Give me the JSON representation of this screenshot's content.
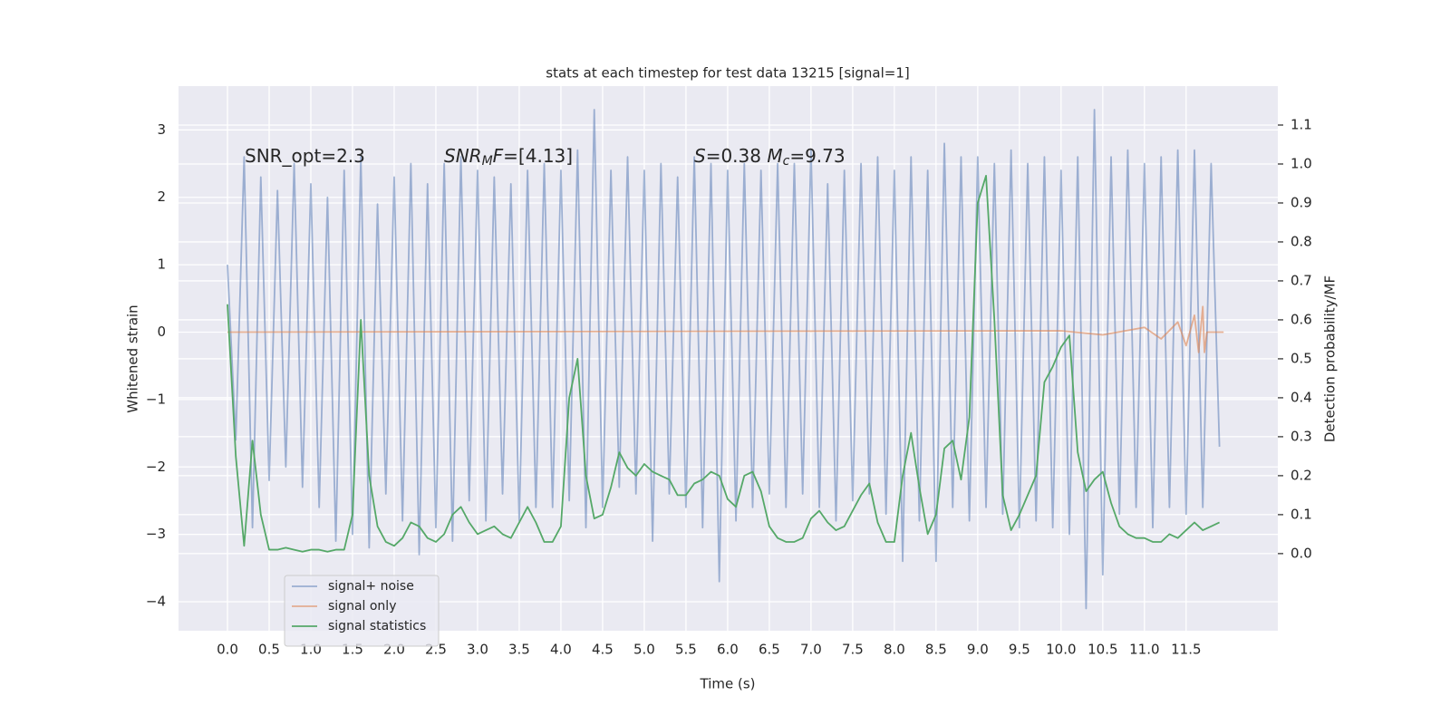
{
  "chart_data": {
    "type": "line",
    "title": "stats at each timestep for test data 13215 [signal=1]",
    "x_label": "Time (s)",
    "y_label": "Whitened strain",
    "y2_label": "Detection probability/MF",
    "annotations": [
      [
        {
          "text": "SNR_opt=2.3"
        }
      ],
      [
        {
          "text": "SNR",
          "italic": true
        },
        {
          "text": "M",
          "italic": true,
          "sub": true
        },
        {
          "text": "F",
          "italic": true
        },
        {
          "text": "=[4.13]"
        }
      ],
      [
        {
          "text": "S",
          "italic": true
        },
        {
          "text": "=0.38   "
        },
        {
          "text": "M",
          "italic": true
        },
        {
          "text": "c",
          "italic": true,
          "sub": true
        },
        {
          "text": "=9.73"
        }
      ]
    ],
    "xlim": [
      -0.587,
      12.6
    ],
    "ylim": [
      -4.43,
      3.65
    ],
    "y2lim": [
      -0.198,
      1.2
    ],
    "xticks": [
      {
        "value": 0,
        "label": "0.0"
      },
      {
        "value": 0.5,
        "label": "0.5"
      },
      {
        "value": 1,
        "label": "1.0"
      },
      {
        "value": 1.5,
        "label": "1.5"
      },
      {
        "value": 2,
        "label": "2.0"
      },
      {
        "value": 2.5,
        "label": "2.5"
      },
      {
        "value": 3,
        "label": "3.0"
      },
      {
        "value": 3.5,
        "label": "3.5"
      },
      {
        "value": 4,
        "label": "4.0"
      },
      {
        "value": 4.5,
        "label": "4.5"
      },
      {
        "value": 5,
        "label": "5.0"
      },
      {
        "value": 5.5,
        "label": "5.5"
      },
      {
        "value": 6,
        "label": "6.0"
      },
      {
        "value": 6.5,
        "label": "6.5"
      },
      {
        "value": 7,
        "label": "7.0"
      },
      {
        "value": 7.5,
        "label": "7.5"
      },
      {
        "value": 8,
        "label": "8.0"
      },
      {
        "value": 8.5,
        "label": "8.5"
      },
      {
        "value": 9,
        "label": "9.0"
      },
      {
        "value": 9.5,
        "label": "9.5"
      },
      {
        "value": 10,
        "label": "10.0"
      },
      {
        "value": 10.5,
        "label": "10.5"
      },
      {
        "value": 11,
        "label": "11.0"
      },
      {
        "value": 11.5,
        "label": "11.5"
      }
    ],
    "yticks": [
      {
        "value": -4,
        "label": "−4"
      },
      {
        "value": -3,
        "label": "−3"
      },
      {
        "value": -2,
        "label": "−2"
      },
      {
        "value": -1,
        "label": "−1"
      },
      0,
      1,
      2,
      3
    ],
    "y2ticks": [
      {
        "value": 0,
        "label": "0.0"
      },
      {
        "value": 0.1,
        "label": "0.1"
      },
      {
        "value": 0.2,
        "label": "0.2"
      },
      {
        "value": 0.3,
        "label": "0.3"
      },
      {
        "value": 0.4,
        "label": "0.4"
      },
      {
        "value": 0.5,
        "label": "0.5"
      },
      {
        "value": 0.6,
        "label": "0.6"
      },
      {
        "value": 0.7,
        "label": "0.7"
      },
      {
        "value": 0.8,
        "label": "0.8"
      },
      {
        "value": 0.9,
        "label": "0.9"
      },
      {
        "value": 1,
        "label": "1.0"
      },
      {
        "value": 1.1,
        "label": "1.1"
      }
    ],
    "grid": true,
    "legend": "lower left",
    "series": [
      {
        "name": "signal+ noise",
        "color": "#4c72b0",
        "alpha": 0.5,
        "axis": "y",
        "x": [
          0,
          0.1,
          0.2,
          0.3,
          0.4,
          0.5,
          0.6,
          0.7,
          0.8,
          0.9,
          1,
          1.1,
          1.2,
          1.3,
          1.4,
          1.5,
          1.6,
          1.7,
          1.8,
          1.9,
          2,
          2.1,
          2.2,
          2.3,
          2.4,
          2.5,
          2.6,
          2.7,
          2.8,
          2.9,
          3,
          3.1,
          3.2,
          3.3,
          3.4,
          3.5,
          3.6,
          3.7,
          3.8,
          3.9,
          4,
          4.1,
          4.2,
          4.3,
          4.4,
          4.5,
          4.6,
          4.7,
          4.8,
          4.9,
          5,
          5.1,
          5.2,
          5.3,
          5.4,
          5.5,
          5.6,
          5.7,
          5.8,
          5.9,
          6,
          6.1,
          6.2,
          6.3,
          6.4,
          6.5,
          6.6,
          6.7,
          6.8,
          6.9,
          7,
          7.1,
          7.2,
          7.3,
          7.4,
          7.5,
          7.6,
          7.7,
          7.8,
          7.9,
          8,
          8.1,
          8.2,
          8.3,
          8.4,
          8.5,
          8.6,
          8.7,
          8.8,
          8.9,
          9,
          9.1,
          9.2,
          9.3,
          9.4,
          9.5,
          9.6,
          9.7,
          9.8,
          9.9,
          10,
          10.1,
          10.2,
          10.3,
          10.4,
          10.5,
          10.6,
          10.7,
          10.8,
          10.9,
          11,
          11.1,
          11.2,
          11.3,
          11.4,
          11.5,
          11.6,
          11.7,
          11.8,
          11.9
        ],
        "values": [
          1.0,
          -1.6,
          2.6,
          -2.9,
          2.3,
          -2.2,
          2.1,
          -2.0,
          2.5,
          -2.3,
          2.2,
          -2.6,
          2.0,
          -3.1,
          2.4,
          -3.0,
          2.6,
          -3.2,
          1.9,
          -2.4,
          2.3,
          -2.8,
          2.5,
          -3.3,
          2.2,
          -2.9,
          2.5,
          -3.1,
          2.6,
          -2.5,
          2.4,
          -2.8,
          2.3,
          -2.4,
          2.2,
          -2.8,
          2.4,
          -2.6,
          2.5,
          -2.6,
          2.4,
          -2.5,
          2.7,
          -2.9,
          3.3,
          -2.6,
          2.4,
          -2.3,
          2.6,
          -2.4,
          2.4,
          -3.1,
          2.5,
          -2.4,
          2.3,
          -2.6,
          2.6,
          -2.9,
          2.5,
          -3.7,
          2.4,
          -2.8,
          2.5,
          -2.6,
          2.4,
          -2.4,
          2.5,
          -2.6,
          2.5,
          -2.4,
          2.7,
          -2.6,
          2.2,
          -2.8,
          2.4,
          -2.5,
          2.5,
          -2.4,
          2.6,
          -2.7,
          2.4,
          -3.4,
          2.6,
          -2.8,
          2.4,
          -3.4,
          2.8,
          -2.6,
          2.6,
          -2.8,
          2.6,
          -2.6,
          2.5,
          -2.7,
          2.7,
          -2.9,
          2.5,
          -2.8,
          2.6,
          -2.9,
          2.4,
          -3.0,
          2.6,
          -4.1,
          3.3,
          -3.6,
          2.6,
          -2.7,
          2.7,
          -2.6,
          2.5,
          -2.9,
          2.6,
          -2.6,
          2.7,
          -2.7,
          2.7,
          -2.6,
          2.5,
          -1.7
        ]
      },
      {
        "name": "signal only",
        "color": "#dd8452",
        "alpha": 0.6,
        "axis": "y",
        "x": [
          0,
          10,
          10.5,
          11,
          11.2,
          11.4,
          11.5,
          11.6,
          11.65,
          11.7,
          11.72,
          11.75,
          11.95
        ],
        "values": [
          0,
          0.02,
          -0.04,
          0.07,
          -0.1,
          0.15,
          -0.2,
          0.25,
          -0.3,
          0.38,
          -0.3,
          0,
          0
        ]
      },
      {
        "name": "signal statistics",
        "color": "#55a868",
        "alpha": 1,
        "axis": "y2",
        "x": [
          0,
          0.1,
          0.2,
          0.3,
          0.4,
          0.5,
          0.6,
          0.7,
          0.8,
          0.9,
          1,
          1.1,
          1.2,
          1.3,
          1.4,
          1.5,
          1.6,
          1.7,
          1.8,
          1.9,
          2,
          2.1,
          2.2,
          2.3,
          2.4,
          2.5,
          2.6,
          2.7,
          2.8,
          2.9,
          3,
          3.1,
          3.2,
          3.3,
          3.4,
          3.5,
          3.6,
          3.7,
          3.8,
          3.9,
          4,
          4.1,
          4.2,
          4.3,
          4.4,
          4.5,
          4.6,
          4.7,
          4.8,
          4.9,
          5,
          5.1,
          5.2,
          5.3,
          5.4,
          5.5,
          5.6,
          5.7,
          5.8,
          5.9,
          6,
          6.1,
          6.2,
          6.3,
          6.4,
          6.5,
          6.6,
          6.7,
          6.8,
          6.9,
          7,
          7.1,
          7.2,
          7.3,
          7.4,
          7.5,
          7.6,
          7.7,
          7.8,
          7.9,
          8,
          8.1,
          8.2,
          8.3,
          8.4,
          8.5,
          8.6,
          8.7,
          8.8,
          8.9,
          9,
          9.1,
          9.2,
          9.3,
          9.4,
          9.5,
          9.6,
          9.7,
          9.8,
          9.9,
          10,
          10.1,
          10.2,
          10.3,
          10.4,
          10.5,
          10.6,
          10.7,
          10.8,
          10.9,
          11,
          11.1,
          11.2,
          11.3,
          11.4,
          11.5,
          11.6,
          11.7,
          11.8,
          11.9
        ],
        "values": [
          0.64,
          0.25,
          0.02,
          0.29,
          0.1,
          0.01,
          0.01,
          0.015,
          0.01,
          0.005,
          0.01,
          0.01,
          0.005,
          0.01,
          0.01,
          0.1,
          0.6,
          0.2,
          0.07,
          0.03,
          0.02,
          0.04,
          0.08,
          0.07,
          0.04,
          0.03,
          0.05,
          0.1,
          0.12,
          0.08,
          0.05,
          0.06,
          0.07,
          0.05,
          0.04,
          0.08,
          0.12,
          0.08,
          0.03,
          0.03,
          0.07,
          0.4,
          0.5,
          0.2,
          0.09,
          0.1,
          0.17,
          0.26,
          0.22,
          0.2,
          0.23,
          0.21,
          0.2,
          0.19,
          0.15,
          0.15,
          0.18,
          0.19,
          0.21,
          0.2,
          0.14,
          0.12,
          0.2,
          0.21,
          0.16,
          0.07,
          0.04,
          0.03,
          0.03,
          0.04,
          0.09,
          0.11,
          0.08,
          0.06,
          0.07,
          0.11,
          0.15,
          0.18,
          0.08,
          0.03,
          0.03,
          0.2,
          0.31,
          0.17,
          0.05,
          0.1,
          0.27,
          0.29,
          0.19,
          0.35,
          0.9,
          0.97,
          0.6,
          0.15,
          0.06,
          0.1,
          0.15,
          0.2,
          0.44,
          0.48,
          0.53,
          0.56,
          0.26,
          0.16,
          0.19,
          0.21,
          0.13,
          0.07,
          0.05,
          0.04,
          0.04,
          0.03,
          0.03,
          0.05,
          0.04,
          0.06,
          0.08,
          0.06,
          0.07,
          0.08
        ]
      }
    ]
  }
}
